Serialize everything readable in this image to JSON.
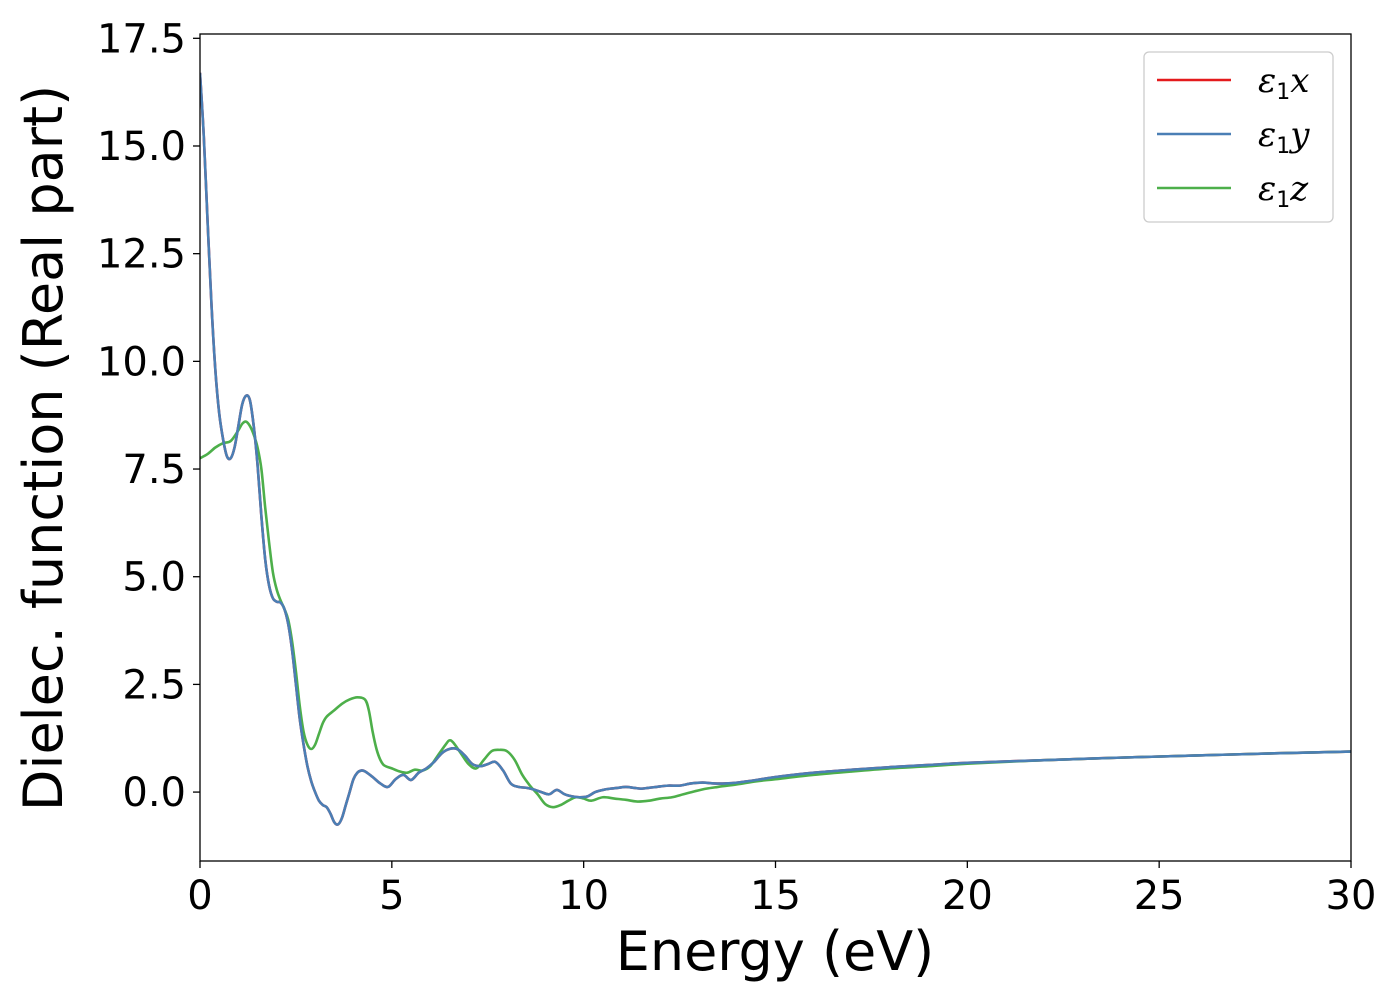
{
  "chart_data": {
    "type": "line",
    "xlabel": "Energy (eV)",
    "ylabel": "Dielec. function (Real part)",
    "xlim": [
      0,
      30
    ],
    "ylim": [
      -1.6,
      17.6
    ],
    "xticks": [
      0,
      5,
      10,
      15,
      20,
      25,
      30
    ],
    "xtick_labels": [
      "0",
      "5",
      "10",
      "15",
      "20",
      "25",
      "30"
    ],
    "yticks": [
      0.0,
      2.5,
      5.0,
      7.5,
      10.0,
      12.5,
      15.0,
      17.5
    ],
    "ytick_labels": [
      "0.0",
      "2.5",
      "5.0",
      "7.5",
      "10.0",
      "12.5",
      "15.0",
      "17.5"
    ],
    "grid": false,
    "legend_position": "top-right",
    "series": [
      {
        "name": "ε1x",
        "legend_base": "ε",
        "legend_sub": "1",
        "legend_var": "x",
        "color": "#e41a1c",
        "x": [
          0,
          0.1,
          0.2,
          0.3,
          0.4,
          0.5,
          0.6,
          0.7,
          0.8,
          0.9,
          1.0,
          1.1,
          1.2,
          1.3,
          1.4,
          1.5,
          1.6,
          1.7,
          1.8,
          1.9,
          2.0,
          2.1,
          2.2,
          2.3,
          2.4,
          2.5,
          2.6,
          2.7,
          2.8,
          2.9,
          3.0,
          3.1,
          3.2,
          3.3,
          3.4,
          3.5,
          3.6,
          3.7,
          3.8,
          3.9,
          4.0,
          4.1,
          4.2,
          4.3,
          4.5,
          4.7,
          4.9,
          5.1,
          5.3,
          5.5,
          5.7,
          5.9,
          6.1,
          6.3,
          6.5,
          6.7,
          6.9,
          7.1,
          7.3,
          7.5,
          7.7,
          7.9,
          8.1,
          8.3,
          8.5,
          8.7,
          8.9,
          9.1,
          9.3,
          9.5,
          9.7,
          9.9,
          10.1,
          10.3,
          10.5,
          10.7,
          10.9,
          11.1,
          11.3,
          11.5,
          11.7,
          11.9,
          12.2,
          12.5,
          12.8,
          13.1,
          13.4,
          13.7,
          14.0,
          14.5,
          15.0,
          16.0,
          17.0,
          18.0,
          19.0,
          20.0,
          22.0,
          24.0,
          26.0,
          28.0,
          30.0
        ],
        "y": [
          16.7,
          15.2,
          13.2,
          11.3,
          9.8,
          8.8,
          8.2,
          7.8,
          7.75,
          8.0,
          8.5,
          9.0,
          9.2,
          9.1,
          8.5,
          7.6,
          6.4,
          5.4,
          4.8,
          4.5,
          4.42,
          4.4,
          4.25,
          3.9,
          3.3,
          2.5,
          1.7,
          1.1,
          0.6,
          0.25,
          0.0,
          -0.2,
          -0.3,
          -0.35,
          -0.5,
          -0.7,
          -0.75,
          -0.6,
          -0.3,
          0.0,
          0.3,
          0.45,
          0.5,
          0.48,
          0.35,
          0.2,
          0.12,
          0.3,
          0.4,
          0.28,
          0.45,
          0.55,
          0.7,
          0.9,
          1.0,
          1.0,
          0.85,
          0.65,
          0.6,
          0.65,
          0.7,
          0.5,
          0.2,
          0.12,
          0.1,
          0.06,
          0.0,
          -0.05,
          0.05,
          -0.05,
          -0.1,
          -0.12,
          -0.1,
          0.0,
          0.05,
          0.08,
          0.1,
          0.12,
          0.1,
          0.08,
          0.1,
          0.12,
          0.15,
          0.15,
          0.2,
          0.22,
          0.2,
          0.2,
          0.22,
          0.28,
          0.35,
          0.45,
          0.52,
          0.58,
          0.63,
          0.68,
          0.74,
          0.8,
          0.85,
          0.9,
          0.94
        ]
      },
      {
        "name": "ε1y",
        "legend_base": "ε",
        "legend_sub": "1",
        "legend_var": "y",
        "color": "#4a7fb5",
        "x": [
          0,
          0.1,
          0.2,
          0.3,
          0.4,
          0.5,
          0.6,
          0.7,
          0.8,
          0.9,
          1.0,
          1.1,
          1.2,
          1.3,
          1.4,
          1.5,
          1.6,
          1.7,
          1.8,
          1.9,
          2.0,
          2.1,
          2.2,
          2.3,
          2.4,
          2.5,
          2.6,
          2.7,
          2.8,
          2.9,
          3.0,
          3.1,
          3.2,
          3.3,
          3.4,
          3.5,
          3.6,
          3.7,
          3.8,
          3.9,
          4.0,
          4.1,
          4.2,
          4.3,
          4.5,
          4.7,
          4.9,
          5.1,
          5.3,
          5.5,
          5.7,
          5.9,
          6.1,
          6.3,
          6.5,
          6.7,
          6.9,
          7.1,
          7.3,
          7.5,
          7.7,
          7.9,
          8.1,
          8.3,
          8.5,
          8.7,
          8.9,
          9.1,
          9.3,
          9.5,
          9.7,
          9.9,
          10.1,
          10.3,
          10.5,
          10.7,
          10.9,
          11.1,
          11.3,
          11.5,
          11.7,
          11.9,
          12.2,
          12.5,
          12.8,
          13.1,
          13.4,
          13.7,
          14.0,
          14.5,
          15.0,
          16.0,
          17.0,
          18.0,
          19.0,
          20.0,
          22.0,
          24.0,
          26.0,
          28.0,
          30.0
        ],
        "y": [
          16.7,
          15.2,
          13.2,
          11.3,
          9.8,
          8.8,
          8.2,
          7.8,
          7.75,
          8.0,
          8.5,
          9.0,
          9.2,
          9.1,
          8.5,
          7.6,
          6.4,
          5.4,
          4.8,
          4.5,
          4.42,
          4.4,
          4.25,
          3.9,
          3.3,
          2.5,
          1.7,
          1.1,
          0.6,
          0.25,
          0.0,
          -0.2,
          -0.3,
          -0.35,
          -0.5,
          -0.7,
          -0.75,
          -0.6,
          -0.3,
          0.0,
          0.3,
          0.45,
          0.5,
          0.48,
          0.35,
          0.2,
          0.12,
          0.3,
          0.4,
          0.28,
          0.45,
          0.55,
          0.7,
          0.9,
          1.0,
          1.0,
          0.85,
          0.65,
          0.6,
          0.65,
          0.7,
          0.5,
          0.2,
          0.12,
          0.1,
          0.06,
          0.0,
          -0.05,
          0.05,
          -0.05,
          -0.1,
          -0.12,
          -0.1,
          0.0,
          0.05,
          0.08,
          0.1,
          0.12,
          0.1,
          0.08,
          0.1,
          0.12,
          0.15,
          0.15,
          0.2,
          0.22,
          0.2,
          0.2,
          0.22,
          0.28,
          0.35,
          0.45,
          0.52,
          0.58,
          0.63,
          0.68,
          0.74,
          0.8,
          0.85,
          0.9,
          0.94
        ]
      },
      {
        "name": "ε1z",
        "legend_base": "ε",
        "legend_sub": "1",
        "legend_var": "z",
        "color": "#4daf4a",
        "x": [
          0,
          0.2,
          0.4,
          0.6,
          0.8,
          1.0,
          1.1,
          1.2,
          1.3,
          1.4,
          1.5,
          1.6,
          1.7,
          1.8,
          1.9,
          2.0,
          2.1,
          2.2,
          2.3,
          2.4,
          2.5,
          2.6,
          2.7,
          2.8,
          2.9,
          3.0,
          3.1,
          3.2,
          3.3,
          3.5,
          3.7,
          3.9,
          4.1,
          4.3,
          4.4,
          4.5,
          4.6,
          4.7,
          4.8,
          5.0,
          5.2,
          5.4,
          5.6,
          5.8,
          6.0,
          6.2,
          6.4,
          6.5,
          6.6,
          6.8,
          7.0,
          7.2,
          7.4,
          7.6,
          7.8,
          8.0,
          8.2,
          8.4,
          8.6,
          8.8,
          9.0,
          9.2,
          9.4,
          9.6,
          9.8,
          10.0,
          10.2,
          10.5,
          10.8,
          11.1,
          11.4,
          11.7,
          12.0,
          12.3,
          12.6,
          12.9,
          13.2,
          13.5,
          14.0,
          14.5,
          15.0,
          16.0,
          17.0,
          18.0,
          19.0,
          20.0,
          22.0,
          24.0,
          26.0,
          28.0,
          30.0
        ],
        "y": [
          7.75,
          7.85,
          8.0,
          8.1,
          8.15,
          8.4,
          8.55,
          8.6,
          8.5,
          8.3,
          8.0,
          7.5,
          6.6,
          5.8,
          5.1,
          4.7,
          4.45,
          4.25,
          4.0,
          3.5,
          2.8,
          2.0,
          1.4,
          1.1,
          1.0,
          1.1,
          1.35,
          1.6,
          1.75,
          1.9,
          2.05,
          2.15,
          2.2,
          2.15,
          1.9,
          1.4,
          1.0,
          0.75,
          0.62,
          0.55,
          0.48,
          0.45,
          0.52,
          0.5,
          0.6,
          0.85,
          1.1,
          1.2,
          1.15,
          0.9,
          0.65,
          0.55,
          0.75,
          0.95,
          0.98,
          0.95,
          0.75,
          0.4,
          0.15,
          -0.05,
          -0.28,
          -0.35,
          -0.3,
          -0.2,
          -0.12,
          -0.15,
          -0.2,
          -0.12,
          -0.15,
          -0.18,
          -0.22,
          -0.2,
          -0.15,
          -0.12,
          -0.05,
          0.02,
          0.08,
          0.12,
          0.18,
          0.25,
          0.3,
          0.4,
          0.48,
          0.55,
          0.6,
          0.66,
          0.74,
          0.8,
          0.85,
          0.9,
          0.94
        ]
      }
    ]
  }
}
